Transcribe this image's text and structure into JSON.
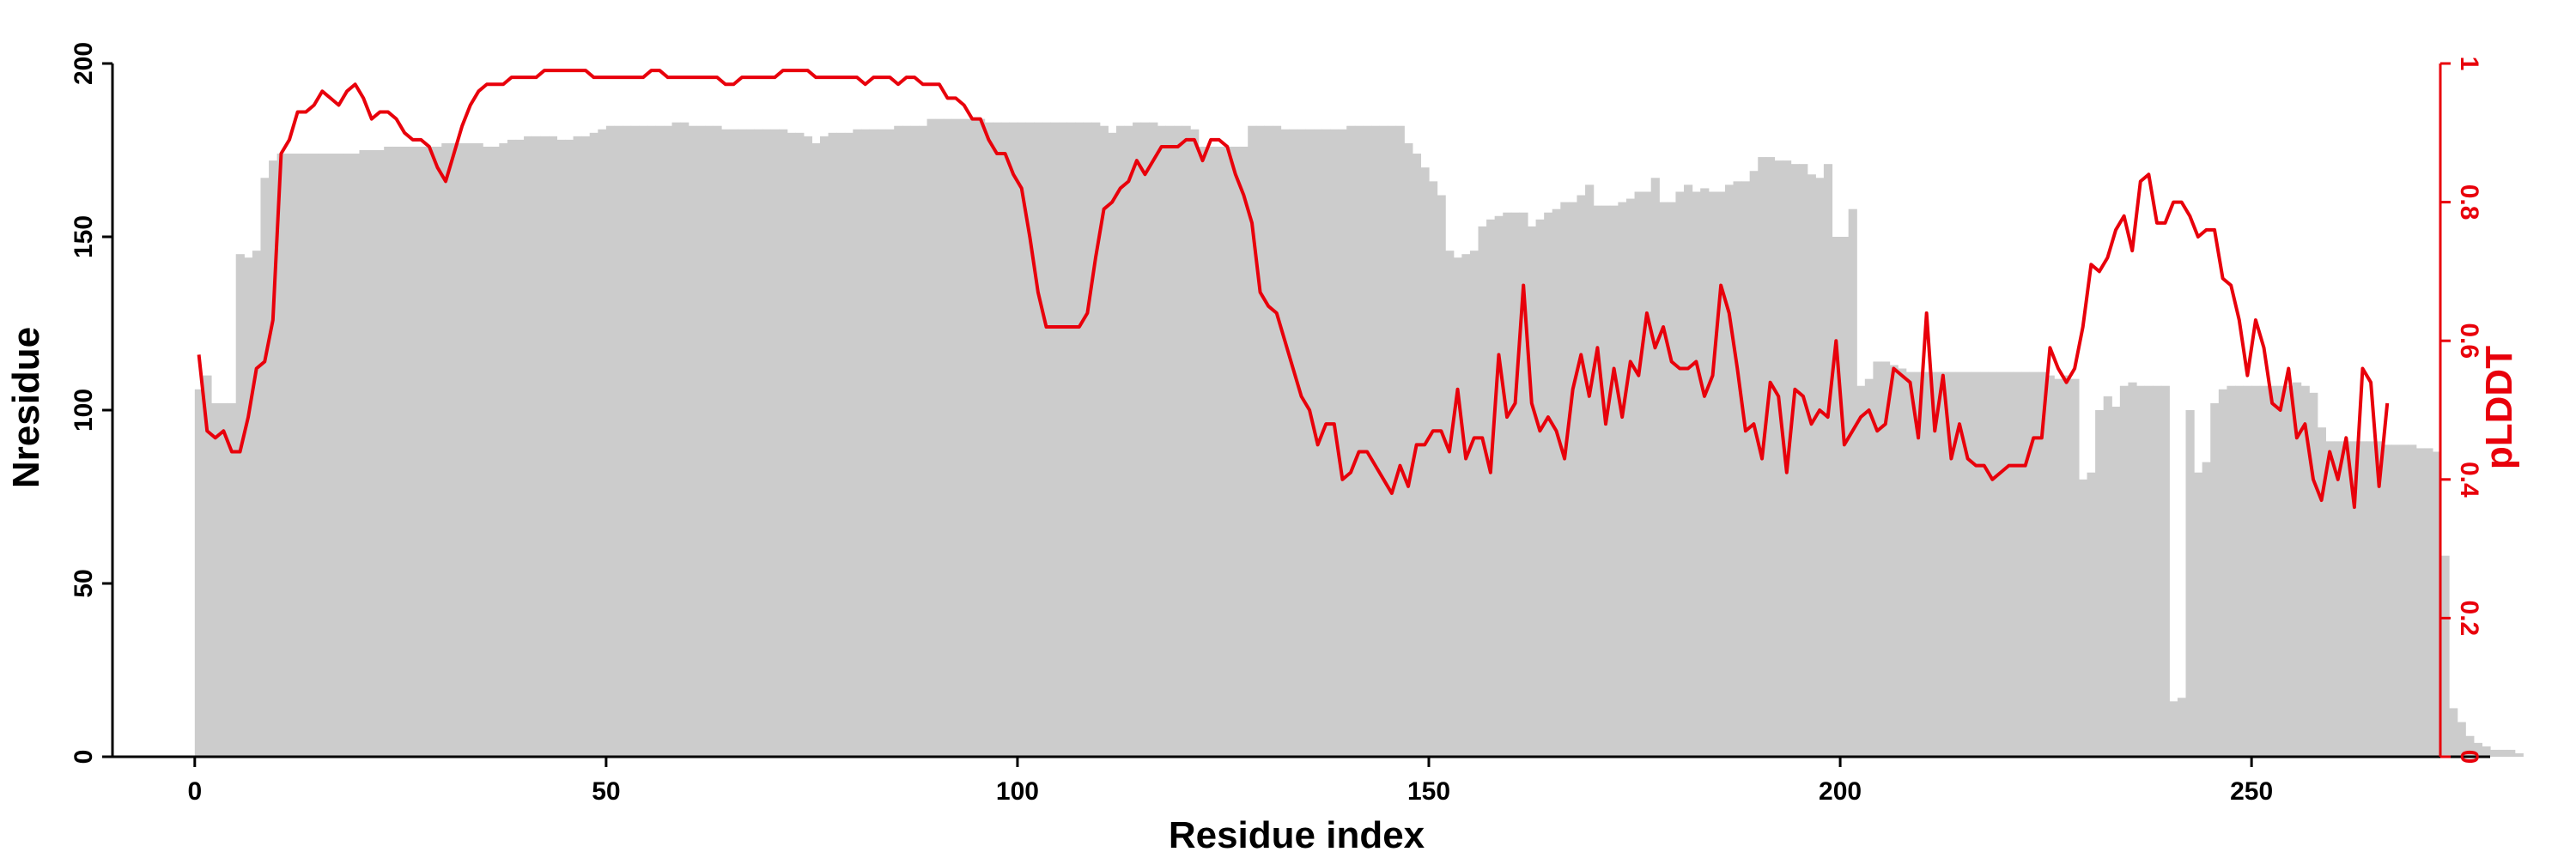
{
  "chart_data": {
    "type": "bar+line",
    "xlabel": "Residue index",
    "ylabel": "Nresidue",
    "y2label": "pLDDT",
    "xlim": [
      -10,
      279
    ],
    "ylim": [
      0,
      200
    ],
    "y2lim": [
      0,
      1
    ],
    "xticks": [
      0,
      50,
      100,
      150,
      200,
      250
    ],
    "yticks": [
      0,
      50,
      100,
      150,
      200
    ],
    "y2ticks": [
      0,
      0.2,
      0.4,
      0.6,
      0.8,
      1
    ],
    "y2tick_labels": [
      "0",
      "0.2",
      "0.4",
      "0.6",
      "0.8",
      "1"
    ],
    "grid": false,
    "colors": {
      "bars": "#cccccc",
      "line": "#e8000b",
      "secondary_axis": "#e8000b",
      "primary_axis": "#000000"
    },
    "series": [
      {
        "kind": "bar",
        "axis": "left",
        "x_start": 0,
        "values": [
          106,
          110,
          102,
          102,
          102,
          145,
          144,
          146,
          167,
          172,
          174,
          174,
          174,
          174,
          174,
          174,
          174,
          174,
          174,
          174,
          175,
          175,
          175,
          176,
          176,
          176,
          176,
          176,
          176,
          176,
          177,
          177,
          177,
          177,
          177,
          176,
          176,
          177,
          178,
          178,
          179,
          179,
          179,
          179,
          178,
          178,
          179,
          179,
          180,
          181,
          182,
          182,
          182,
          182,
          182,
          182,
          182,
          182,
          183,
          183,
          182,
          182,
          182,
          182,
          181,
          181,
          181,
          181,
          181,
          181,
          181,
          181,
          180,
          180,
          179,
          177,
          179,
          180,
          180,
          180,
          181,
          181,
          181,
          181,
          181,
          182,
          182,
          182,
          182,
          184,
          184,
          184,
          184,
          184,
          184,
          184,
          183,
          183,
          183,
          183,
          183,
          183,
          183,
          183,
          183,
          183,
          183,
          183,
          183,
          183,
          182,
          180,
          182,
          182,
          183,
          183,
          183,
          182,
          182,
          182,
          182,
          181,
          176,
          176,
          176,
          176,
          176,
          176,
          182,
          182,
          182,
          182,
          181,
          181,
          181,
          181,
          181,
          181,
          181,
          181,
          182,
          182,
          182,
          182,
          182,
          182,
          182,
          177,
          174,
          170,
          166,
          162,
          146,
          144,
          145,
          146,
          153,
          155,
          156,
          157,
          157,
          157,
          153,
          155,
          157,
          158,
          160,
          160,
          162,
          165,
          159,
          159,
          159,
          160,
          161,
          163,
          163,
          167,
          160,
          160,
          163,
          165,
          163,
          164,
          163,
          163,
          165,
          166,
          166,
          169,
          173,
          173,
          172,
          172,
          171,
          171,
          168,
          167,
          171,
          150,
          150,
          158,
          107,
          109,
          114,
          114,
          113,
          112,
          111,
          111,
          111,
          111,
          111,
          111,
          111,
          111,
          111,
          111,
          111,
          111,
          111,
          111,
          111,
          111,
          111,
          110,
          109,
          110,
          109,
          80,
          82,
          100,
          104,
          101,
          107,
          108,
          107,
          107,
          107,
          107,
          16,
          17,
          100,
          82,
          85,
          102,
          106,
          107,
          107,
          107,
          107,
          107,
          107,
          107,
          107,
          108,
          107,
          105,
          95,
          91,
          91,
          91,
          91,
          91,
          91,
          91,
          90,
          90,
          90,
          90,
          89,
          89,
          88,
          58,
          14,
          10,
          6,
          4,
          3,
          2,
          2,
          2,
          1
        ]
      },
      {
        "kind": "line",
        "axis": "right",
        "name": "pLDDT",
        "x_start": 0,
        "values": [
          0.58,
          0.47,
          0.46,
          0.47,
          0.44,
          0.44,
          0.49,
          0.56,
          0.57,
          0.63,
          0.87,
          0.89,
          0.93,
          0.93,
          0.94,
          0.96,
          0.95,
          0.94,
          0.96,
          0.97,
          0.95,
          0.92,
          0.93,
          0.93,
          0.92,
          0.9,
          0.89,
          0.89,
          0.88,
          0.85,
          0.83,
          0.87,
          0.91,
          0.94,
          0.96,
          0.97,
          0.97,
          0.97,
          0.98,
          0.98,
          0.98,
          0.98,
          0.99,
          0.99,
          0.99,
          0.99,
          0.99,
          0.99,
          0.98,
          0.98,
          0.98,
          0.98,
          0.98,
          0.98,
          0.98,
          0.99,
          0.99,
          0.98,
          0.98,
          0.98,
          0.98,
          0.98,
          0.98,
          0.98,
          0.97,
          0.97,
          0.98,
          0.98,
          0.98,
          0.98,
          0.98,
          0.99,
          0.99,
          0.99,
          0.99,
          0.98,
          0.98,
          0.98,
          0.98,
          0.98,
          0.98,
          0.97,
          0.98,
          0.98,
          0.98,
          0.97,
          0.98,
          0.98,
          0.97,
          0.97,
          0.97,
          0.95,
          0.95,
          0.94,
          0.92,
          0.92,
          0.89,
          0.87,
          0.87,
          0.84,
          0.82,
          0.75,
          0.67,
          0.62,
          0.62,
          0.62,
          0.62,
          0.62,
          0.64,
          0.72,
          0.79,
          0.8,
          0.82,
          0.83,
          0.86,
          0.84,
          0.86,
          0.88,
          0.88,
          0.88,
          0.89,
          0.89,
          0.86,
          0.89,
          0.89,
          0.88,
          0.84,
          0.81,
          0.77,
          0.67,
          0.65,
          0.64,
          0.6,
          0.56,
          0.52,
          0.5,
          0.45,
          0.48,
          0.48,
          0.4,
          0.41,
          0.44,
          0.44,
          0.42,
          0.4,
          0.38,
          0.42,
          0.39,
          0.45,
          0.45,
          0.47,
          0.47,
          0.44,
          0.53,
          0.43,
          0.46,
          0.46,
          0.41,
          0.58,
          0.49,
          0.51,
          0.68,
          0.51,
          0.47,
          0.49,
          0.47,
          0.43,
          0.53,
          0.58,
          0.52,
          0.59,
          0.48,
          0.56,
          0.49,
          0.57,
          0.55,
          0.64,
          0.59,
          0.62,
          0.57,
          0.56,
          0.56,
          0.57,
          0.52,
          0.55,
          0.68,
          0.64,
          0.56,
          0.47,
          0.48,
          0.43,
          0.54,
          0.52,
          0.41,
          0.53,
          0.52,
          0.48,
          0.5,
          0.49,
          0.6,
          0.45,
          0.47,
          0.49,
          0.5,
          0.47,
          0.48,
          0.56,
          0.55,
          0.54,
          0.46,
          0.64,
          0.47,
          0.55,
          0.43,
          0.48,
          0.43,
          0.42,
          0.42,
          0.4,
          0.41,
          0.42,
          0.42,
          0.42,
          0.46,
          0.46,
          0.59,
          0.56,
          0.54,
          0.56,
          0.62,
          0.71,
          0.7,
          0.72,
          0.76,
          0.78,
          0.73,
          0.83,
          0.84,
          0.77,
          0.77,
          0.8,
          0.8,
          0.78,
          0.75,
          0.76,
          0.76,
          0.69,
          0.68,
          0.63,
          0.55,
          0.63,
          0.59,
          0.51,
          0.5,
          0.56,
          0.46,
          0.48,
          0.4,
          0.37,
          0.44,
          0.4,
          0.46,
          0.36,
          0.56,
          0.54,
          0.39,
          0.51
        ]
      }
    ]
  }
}
